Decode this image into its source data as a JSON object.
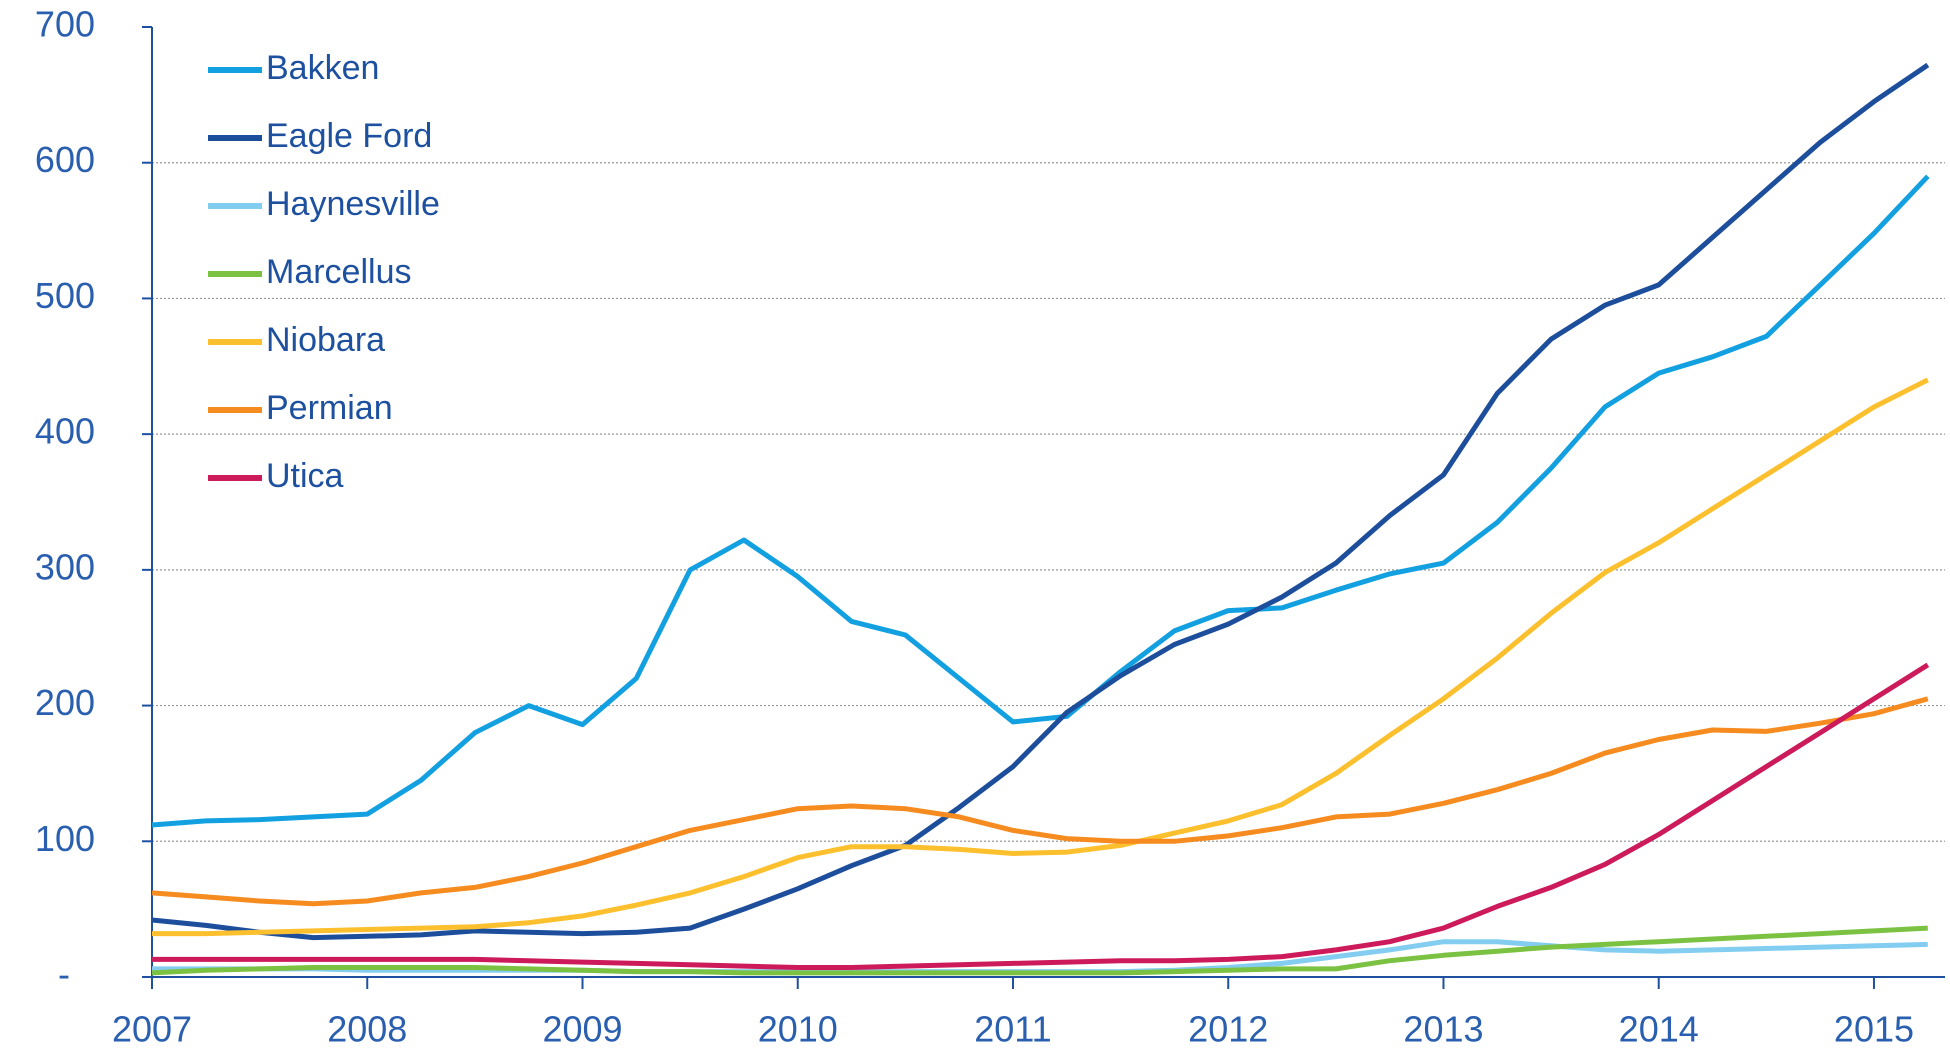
{
  "chart_data": {
    "type": "line",
    "x": [
      2007,
      2007.25,
      2007.5,
      2007.75,
      2008,
      2008.25,
      2008.5,
      2008.75,
      2009,
      2009.25,
      2009.5,
      2009.75,
      2010,
      2010.25,
      2010.5,
      2010.75,
      2011,
      2011.25,
      2011.5,
      2011.75,
      2012,
      2012.25,
      2012.5,
      2012.75,
      2013,
      2013.25,
      2013.5,
      2013.75,
      2014,
      2014.25,
      2014.5,
      2014.75,
      2015,
      2015.25
    ],
    "series": [
      {
        "name": "Bakken",
        "color": "#12a0e0",
        "values": [
          112,
          115,
          116,
          118,
          120,
          145,
          180,
          200,
          186,
          220,
          300,
          322,
          295,
          262,
          252,
          220,
          188,
          192,
          225,
          255,
          270,
          272,
          285,
          297,
          305,
          335,
          375,
          420,
          445,
          457,
          472,
          510,
          548,
          590
        ]
      },
      {
        "name": "Eagle Ford",
        "color": "#1c4e9c",
        "values": [
          42,
          38,
          33,
          29,
          30,
          31,
          34,
          33,
          32,
          33,
          36,
          50,
          65,
          82,
          97,
          125,
          155,
          195,
          222,
          245,
          260,
          280,
          305,
          340,
          370,
          430,
          470,
          495,
          510,
          545,
          580,
          615,
          645,
          672
        ]
      },
      {
        "name": "Haynesville",
        "color": "#82cdf0",
        "values": [
          6,
          6,
          6,
          6,
          5,
          5,
          5,
          5,
          5,
          4,
          4,
          4,
          4,
          4,
          4,
          4,
          4,
          4,
          4,
          5,
          7,
          10,
          15,
          20,
          26,
          26,
          23,
          20,
          19,
          20,
          21,
          22,
          23,
          24
        ]
      },
      {
        "name": "Marcellus",
        "color": "#7cc242",
        "values": [
          3,
          5,
          6,
          7,
          7,
          7,
          7,
          6,
          5,
          4,
          4,
          3,
          3,
          3,
          3,
          3,
          3,
          3,
          3,
          4,
          5,
          6,
          6,
          12,
          16,
          19,
          22,
          24,
          26,
          28,
          30,
          32,
          34,
          36
        ]
      },
      {
        "name": "Niobara",
        "color": "#fcc02e",
        "values": [
          32,
          32,
          33,
          34,
          35,
          36,
          37,
          40,
          45,
          53,
          62,
          74,
          88,
          96,
          96,
          94,
          91,
          92,
          97,
          106,
          115,
          127,
          150,
          178,
          205,
          235,
          268,
          298,
          320,
          345,
          370,
          395,
          420,
          440
        ]
      },
      {
        "name": "Permian",
        "color": "#f68b1f",
        "values": [
          62,
          59,
          56,
          54,
          56,
          62,
          66,
          74,
          84,
          96,
          108,
          116,
          124,
          126,
          124,
          118,
          108,
          102,
          100,
          100,
          104,
          110,
          118,
          120,
          128,
          138,
          150,
          165,
          175,
          182,
          181,
          187,
          194,
          205
        ]
      },
      {
        "name": "Utica",
        "color": "#cc1a5a",
        "values": [
          13,
          13,
          13,
          13,
          13,
          13,
          13,
          12,
          11,
          10,
          9,
          8,
          7,
          7,
          8,
          9,
          10,
          11,
          12,
          12,
          13,
          15,
          20,
          26,
          36,
          52,
          66,
          83,
          105,
          130,
          155,
          180,
          205,
          230
        ]
      }
    ],
    "xlim": [
      2007,
      2015.33
    ],
    "xticks": [
      2007,
      2008,
      2009,
      2010,
      2011,
      2012,
      2013,
      2014,
      2015
    ],
    "ylim": [
      0,
      700
    ],
    "yticks": [
      {
        "value": 0,
        "label": "-"
      },
      100,
      200,
      300,
      400,
      500,
      600,
      700
    ],
    "grid": true,
    "legend": "upper left"
  }
}
